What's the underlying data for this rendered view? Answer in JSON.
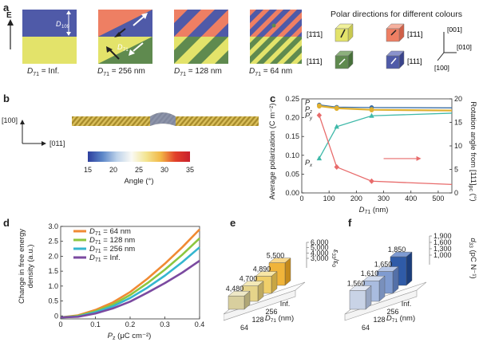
{
  "panel_a": {
    "label": "a",
    "field_label": "E",
    "d109_label": "D",
    "d109_sub": "109",
    "d71_label": "D",
    "d71_sub": "71",
    "captions": [
      {
        "pre": "D",
        "sub": "71",
        "post": " = Inf."
      },
      {
        "pre": "D",
        "sub": "71",
        "post": " = 256 nm"
      },
      {
        "pre": "D",
        "sub": "71",
        "post": " = 128 nm"
      },
      {
        "pre": "D",
        "sub": "71",
        "post": " = 64 nm"
      }
    ],
    "legend_title": "Polar directions for different colours",
    "cube_labels": [
      "[1̄1̄1]",
      "[1̄11]",
      "[11̄1]",
      "[111]"
    ],
    "axis_labels": [
      "[001]",
      "[010]",
      "[100]"
    ],
    "colors": {
      "blue": "#4f5aa8",
      "yellow": "#e3e36a",
      "salmon": "#ee7f63",
      "green": "#5f8a4f"
    }
  },
  "panel_b": {
    "label": "b",
    "axis_y": "[100]",
    "axis_x": "[011]",
    "colorbar_ticks": [
      "15",
      "20",
      "25",
      "30",
      "35"
    ],
    "colorbar_label": "Angle (°)"
  },
  "panel_c": {
    "label": "c",
    "ylabel_left": "Average polarization (C m⁻²)",
    "ylabel_right": "Rotation angle from [111]",
    "ylabel_right_sub": "pc",
    "ylabel_right_unit": " (°)",
    "xlabel": "D",
    "xlabel_sub": "71",
    "xlabel_unit": " (nm)",
    "series_labels": {
      "P": "P",
      "Py": "P",
      "Py_sub": "y",
      "Pz": "P",
      "Pz_sub": "z",
      "Px": "P",
      "Px_sub": "x"
    }
  },
  "panel_d": {
    "label": "d",
    "ylabel": "Change in free energy density (a.u.)",
    "ylabel_line1": "Change in free energy",
    "ylabel_line2": "density (a.u.)",
    "xlabel": "P",
    "xlabel_sub": "z",
    "xlabel_unit": " (μC cm⁻²)",
    "legend": [
      {
        "pre": "D",
        "sub": "71",
        "post": " = 64 nm",
        "color": "#f08a33"
      },
      {
        "pre": "D",
        "sub": "71",
        "post": " = 128 nm",
        "color": "#8cc63f"
      },
      {
        "pre": "D",
        "sub": "71",
        "post": " = 256 nm",
        "color": "#35b6cf"
      },
      {
        "pre": "D",
        "sub": "71",
        "post": " = Inf.",
        "color": "#7b4aa0"
      }
    ]
  },
  "panel_e": {
    "label": "e",
    "values": [
      "4,480",
      "4,700",
      "4,890",
      "5,500"
    ],
    "x_ticks": [
      "64",
      "128",
      "256",
      "Inf."
    ],
    "x_label": "D",
    "x_label_sub": "71",
    "x_label_unit": " (nm)",
    "z_ticks": [
      "6,000",
      "5,000",
      "4,000",
      "3,000"
    ],
    "z_label": "ε",
    "z_label_sub": "33",
    "z_label_post": "/ε",
    "z_label_sub2": "0"
  },
  "panel_f": {
    "label": "f",
    "values": [
      "1,560",
      "1,610",
      "1,650",
      "1,850"
    ],
    "x_ticks": [
      "64",
      "128",
      "256",
      "Inf."
    ],
    "x_label": "D",
    "x_label_sub": "71",
    "x_label_unit": " (nm)",
    "z_ticks": [
      "1,900",
      "1,600",
      "1,300",
      "1,000"
    ],
    "z_label": "d",
    "z_label_sub": "33",
    "z_label_unit": " (pC N⁻¹)"
  },
  "chart_data": [
    {
      "type": "scatter",
      "panel": "c",
      "x": [
        64,
        128,
        256,
        550
      ],
      "xlim": [
        0,
        550
      ],
      "ylim": [
        0,
        0.25
      ],
      "y2lim": [
        0,
        20
      ],
      "series": [
        {
          "name": "P",
          "axis": "left",
          "color": "#3a6ea5",
          "values": [
            0.234,
            0.228,
            0.227,
            0.226
          ]
        },
        {
          "name": "Py",
          "axis": "left",
          "color": "#e0b030",
          "values": [
            0.232,
            0.226,
            0.222,
            0.22
          ]
        },
        {
          "name": "Pz",
          "axis": "left",
          "color": "#e0b030",
          "values": [
            0.23,
            0.224,
            0.22,
            0.218
          ]
        },
        {
          "name": "Px",
          "axis": "left",
          "color": "#3fb9a9",
          "values": [
            0.092,
            0.176,
            0.205,
            0.212
          ]
        },
        {
          "name": "Rotation angle",
          "axis": "right",
          "color": "#e86b6b",
          "values": [
            16.5,
            5.5,
            2.5,
            1.8
          ]
        }
      ]
    },
    {
      "type": "line",
      "panel": "d",
      "x": [
        0,
        0.05,
        0.1,
        0.15,
        0.2,
        0.25,
        0.3,
        0.35,
        0.4
      ],
      "xlim": [
        0,
        0.4
      ],
      "ylim": [
        0,
        3.0
      ],
      "series": [
        {
          "name": "D71 = 64 nm",
          "color": "#f08a33",
          "values": [
            -0.05,
            0.02,
            0.2,
            0.45,
            0.8,
            1.25,
            1.75,
            2.3,
            2.9
          ]
        },
        {
          "name": "D71 = 128 nm",
          "color": "#8cc63f",
          "values": [
            -0.05,
            0.0,
            0.15,
            0.38,
            0.7,
            1.1,
            1.55,
            2.05,
            2.6
          ]
        },
        {
          "name": "D71 = 256 nm",
          "color": "#35b6cf",
          "values": [
            -0.05,
            -0.02,
            0.12,
            0.32,
            0.6,
            0.95,
            1.35,
            1.8,
            2.3
          ]
        },
        {
          "name": "D71 = Inf.",
          "color": "#7b4aa0",
          "values": [
            -0.05,
            -0.03,
            0.08,
            0.25,
            0.48,
            0.78,
            1.1,
            1.45,
            1.85
          ]
        }
      ]
    },
    {
      "type": "bar",
      "panel": "e",
      "categories": [
        "64",
        "128",
        "256",
        "Inf."
      ],
      "values": [
        4480,
        4700,
        4890,
        5500
      ],
      "zlim": [
        3000,
        6000
      ]
    },
    {
      "type": "bar",
      "panel": "f",
      "categories": [
        "64",
        "128",
        "256",
        "Inf."
      ],
      "values": [
        1560,
        1610,
        1650,
        1850
      ],
      "zlim": [
        1000,
        1900
      ]
    }
  ]
}
